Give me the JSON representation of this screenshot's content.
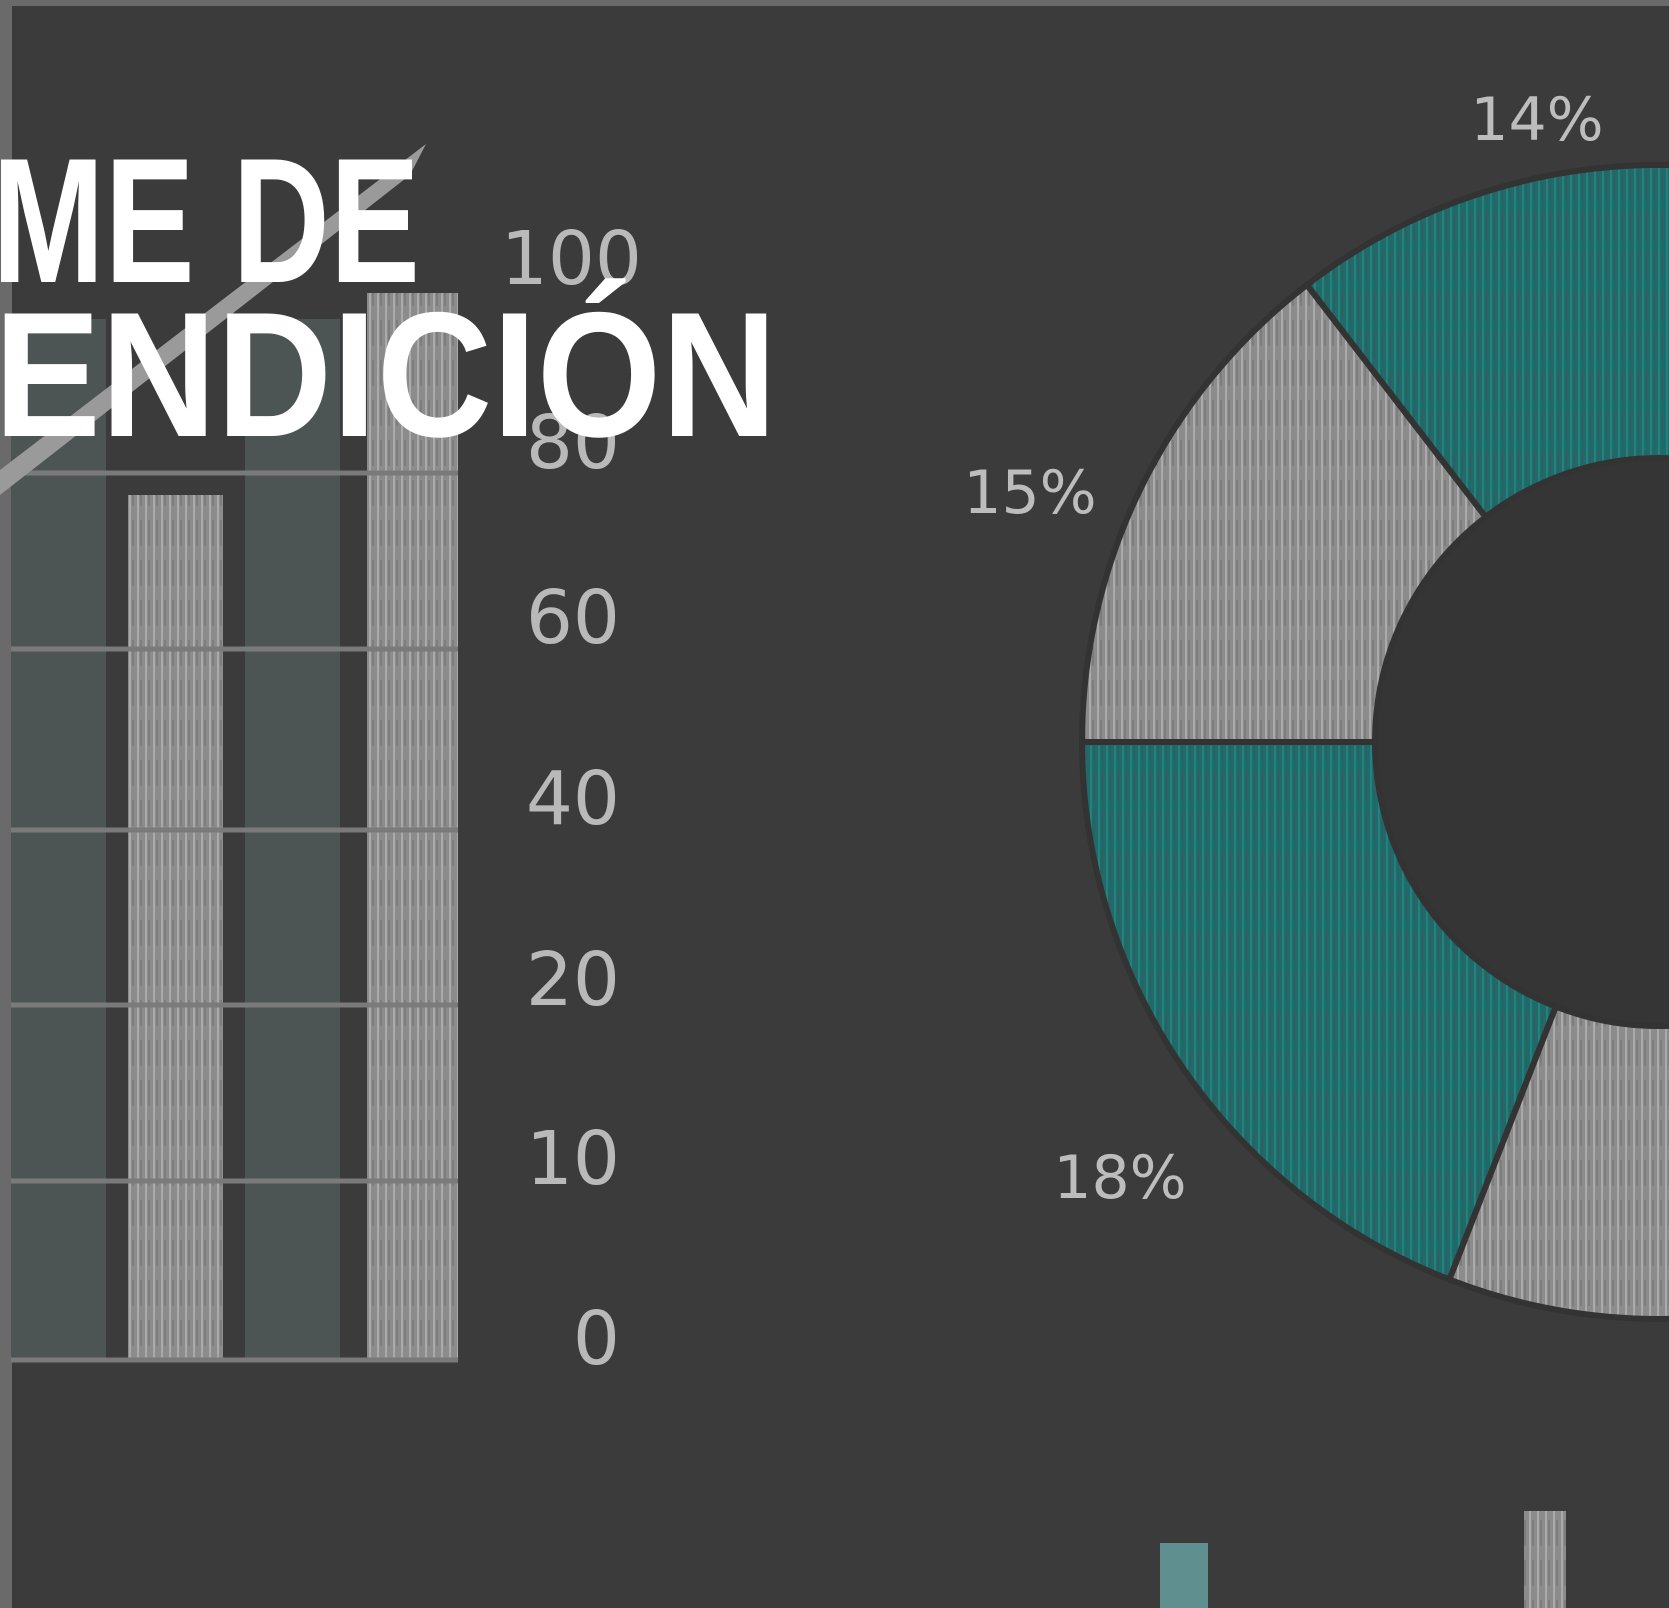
{
  "title": {
    "lines": [
      "ME DE",
      "ENDICIÓN"
    ]
  },
  "axis_labels": [
    "100",
    "80",
    "60",
    "40",
    "20",
    "10",
    "0"
  ],
  "percent_labels": [
    "14%",
    "15%",
    "18%"
  ]
}
